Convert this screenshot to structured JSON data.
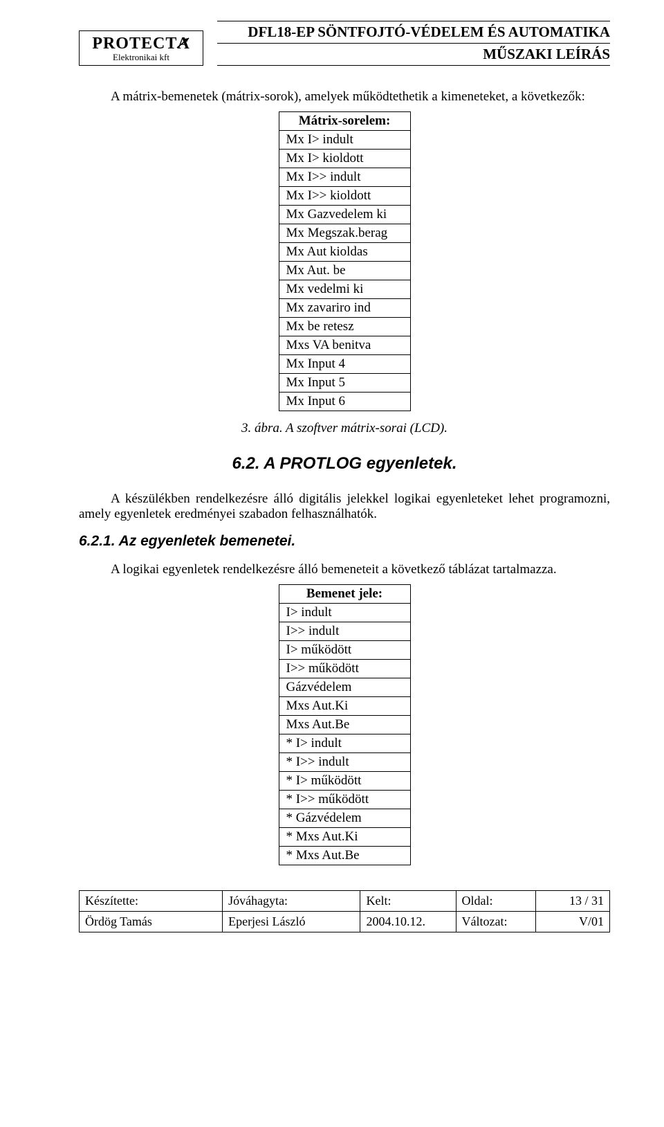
{
  "header": {
    "logo_main": "PROTECT",
    "logo_letter": "A",
    "logo_sub": "Elektronikai kft",
    "title_top": "DFL18-EP   SÖNTFOJTÓ-VÉDELEM ÉS AUTOMATIKA",
    "title_bot": "MŰSZAKI LEÍRÁS"
  },
  "intro_para": "A mátrix-bemenetek (mátrix-sorok), amelyek működtethetik a kimeneteket, a következők:",
  "table1": {
    "header": "Mátrix-sorelem:",
    "rows": [
      "Mx I> indult",
      "Mx I> kioldott",
      "Mx I>> indult",
      "Mx I>> kioldott",
      "Mx Gazvedelem ki",
      "Mx Megszak.berag",
      "Mx Aut kioldas",
      "Mx Aut. be",
      "Mx vedelmi ki",
      "Mx zavariro ind",
      "Mx be retesz",
      "Mxs VA benitva",
      "Mx Input 4",
      "Mx Input 5",
      "Mx Input 6"
    ]
  },
  "caption1": "3. ábra. A szoftver mátrix-sorai (LCD).",
  "h2": "6.2. A PROTLOG egyenletek.",
  "para2": "A készülékben rendelkezésre álló digitális jelekkel logikai egyenleteket lehet programozni, amely egyenletek eredményei szabadon felhasználhatók.",
  "h3": "6.2.1. Az egyenletek bemenetei.",
  "para3": "A logikai egyenletek rendelkezésre álló bemeneteit a következő táblázat tartalmazza.",
  "table2": {
    "header": "Bemenet jele:",
    "rows": [
      "I> indult",
      "I>> indult",
      "I> működött",
      "I>> működött",
      "Gázvédelem",
      "Mxs Aut.Ki",
      "Mxs Aut.Be",
      "* I> indult",
      "* I>> indult",
      "* I> működött",
      "* I>> működött",
      "* Gázvédelem",
      "* Mxs Aut.Ki",
      "* Mxs Aut.Be"
    ]
  },
  "footer": {
    "r1": {
      "a": "Készítette:",
      "b": "Jóváhagyta:",
      "c": "Kelt:",
      "d": "Oldal:",
      "e": "13 / 31"
    },
    "r2": {
      "a": "Ördög Tamás",
      "b": "Eperjesi László",
      "c": "2004.10.12.",
      "d": "Változat:",
      "e": "V/01"
    }
  }
}
